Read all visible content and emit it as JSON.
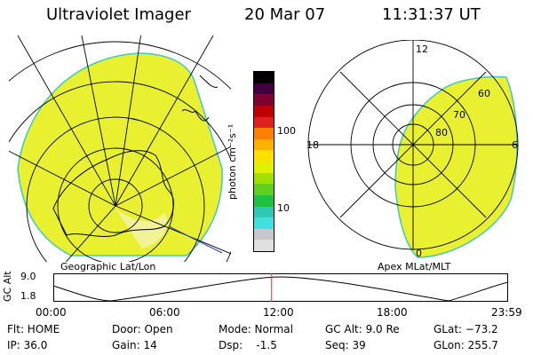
{
  "header": {
    "title": "Ultraviolet Imager",
    "date": "20 Mar 07",
    "time": "11:31:37 UT"
  },
  "colorbar": {
    "unit_label": "photon cm⁻²s⁻¹",
    "tick_high": "100",
    "tick_low": "10",
    "colors": [
      "#e0e0e0",
      "#c8c8c8",
      "#40e0e0",
      "#30c8b0",
      "#20c040",
      "#60d020",
      "#a0e000",
      "#e0f000",
      "#ffe000",
      "#ffb000",
      "#ff8000",
      "#e02020",
      "#c00000",
      "#800030",
      "#400040",
      "#000000"
    ]
  },
  "left_map": {
    "caption": "Geographic Lat/Lon"
  },
  "right_map": {
    "caption": "Apex MLat/MLT",
    "mlt_top": "12",
    "mlt_left": "18",
    "mlt_right": "6",
    "mlt_bottom": "0",
    "lat_60": "60",
    "lat_70": "70",
    "lat_80": "80"
  },
  "altitude_plot": {
    "ylabel": "GC Alt",
    "y_top": "9.0",
    "y_bottom": "1.8",
    "x_ticks": [
      "00:00",
      "06:00",
      "12:00",
      "18:00",
      "23:59"
    ],
    "current_time_marker_fraction": 0.48
  },
  "footer": {
    "flt": "Flt: HOME",
    "ip": "IP: 36.0",
    "door": "Door: Open",
    "gain": "Gain: 14",
    "mode": "Mode: Normal",
    "dsp": "Dsp:    -1.5",
    "gcalt": "GC Alt: 9.0 Re",
    "seq": "Seq: 39",
    "glat": "GLat: −73.2",
    "glon": "GLon: 255.7"
  },
  "colors": {
    "aurora_fill": "#e8f030",
    "aurora_edge": "#40c8c0",
    "grid": "#000000",
    "marker": "#e03030"
  }
}
